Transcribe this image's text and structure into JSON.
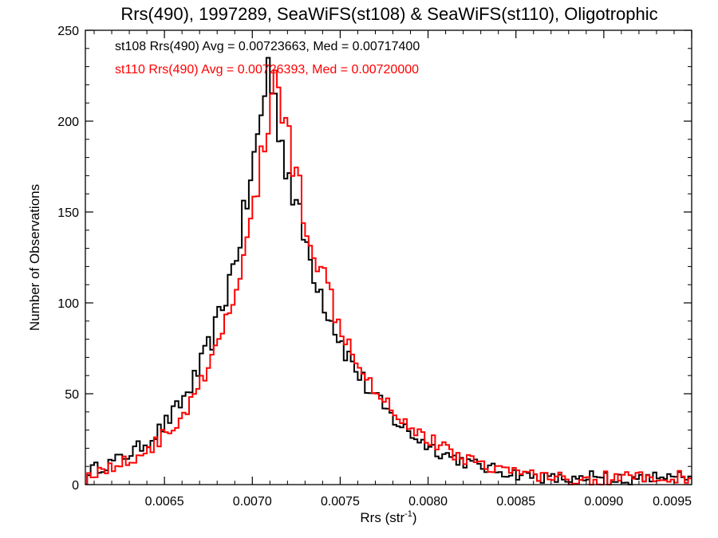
{
  "chart_data": {
    "type": "histogram",
    "title": "Rrs(490), 1997289, SeaWiFS(st108) & SeaWiFS(st110), Oligotrophic",
    "xlabel": "Rrs (str",
    "xlabel_sup": "-1",
    "xlabel_close": ")",
    "ylabel": "Number of Observations",
    "xlim": [
      0.00605,
      0.0095
    ],
    "ylim": [
      0,
      250
    ],
    "xticks": [
      0.0065,
      0.007,
      0.0075,
      0.008,
      0.0085,
      0.009,
      0.0095
    ],
    "xtick_labels": [
      "0.0065",
      "0.0070",
      "0.0075",
      "0.0080",
      "0.0085",
      "0.0090",
      "0.0095"
    ],
    "yticks": [
      0,
      50,
      100,
      150,
      200,
      250
    ],
    "ytick_labels": [
      "0",
      "50",
      "100",
      "150",
      "200",
      "250"
    ],
    "grid": false,
    "legend_position": "top-left",
    "series": [
      {
        "label": "st108 Rrs(490) Avg = 0.00723663, Med = 0.00717400",
        "color": "#000000",
        "avg": 0.00723663,
        "median": 0.007174,
        "peak": 232,
        "peak_x": 0.00709,
        "sigma_left": 0.00033,
        "sigma_right": 0.00042
      },
      {
        "label": "st110 Rrs(490) Avg = 0.00726393, Med = 0.00720000",
        "color": "#ff0000",
        "avg": 0.00726393,
        "median": 0.0072,
        "peak": 230,
        "peak_x": 0.00713,
        "sigma_left": 0.00032,
        "sigma_right": 0.00043
      }
    ]
  }
}
